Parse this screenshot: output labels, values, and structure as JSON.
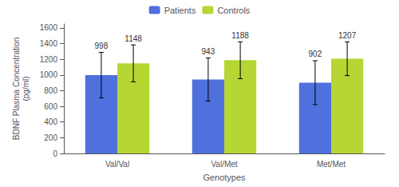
{
  "chart_data": {
    "type": "bar",
    "xlabel": "Genotypes",
    "ylabel": "BDNF Plasma Concentration\n(pg/ml)",
    "categories": [
      "Val/Val",
      "Val/Met",
      "Met/Met"
    ],
    "series": [
      {
        "name": "Patients",
        "values": [
          998,
          943,
          902
        ],
        "errors": [
          290,
          275,
          280
        ]
      },
      {
        "name": "Controls",
        "values": [
          1148,
          1188,
          1207
        ],
        "errors": [
          235,
          235,
          215
        ]
      }
    ],
    "ylim": [
      0,
      1650
    ],
    "yticks": [
      0,
      200,
      400,
      600,
      800,
      1000,
      1200,
      1400,
      1600
    ],
    "data_labels": true,
    "grid": false,
    "legend": "top"
  }
}
